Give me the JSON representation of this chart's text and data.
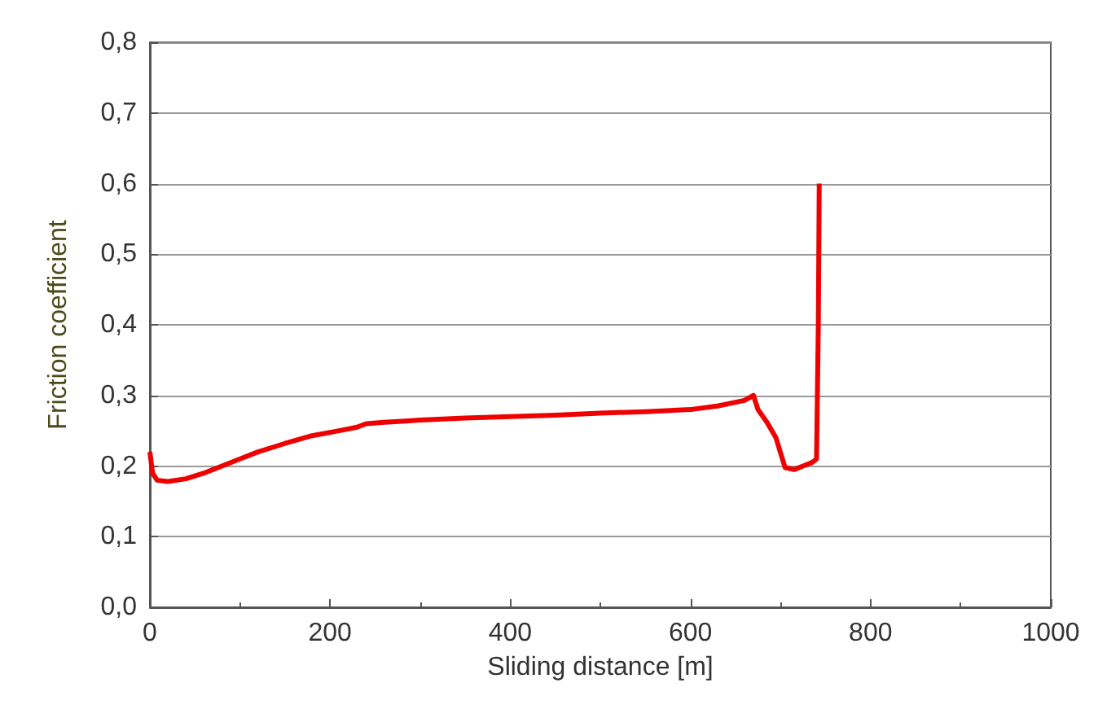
{
  "chart_data": {
    "type": "line",
    "xlabel": "Sliding distance [m]",
    "ylabel": "Friction coefficient",
    "xlim": [
      0,
      1000
    ],
    "xticks": [
      0,
      200,
      400,
      600,
      800,
      1000
    ],
    "ylim": [
      0,
      0.8
    ],
    "yticks": [
      {
        "value": 0,
        "label": "0,0"
      },
      {
        "value": 0.1,
        "label": "0,1"
      },
      {
        "value": 0.2,
        "label": "0,2"
      },
      {
        "value": 0.3,
        "label": "0,3"
      },
      {
        "value": 0.4,
        "label": "0,4"
      },
      {
        "value": 0.5,
        "label": "0,5"
      },
      {
        "value": 0.6,
        "label": "0,6"
      },
      {
        "value": 0.7,
        "label": "0,7"
      },
      {
        "value": 0.8,
        "label": "0,8"
      }
    ],
    "grid": "y",
    "marker": "none",
    "line_style": "solid",
    "series": [
      {
        "color": "#ee0000",
        "x": [
          0,
          3,
          8,
          20,
          40,
          60,
          80,
          100,
          120,
          150,
          180,
          210,
          230,
          240,
          260,
          300,
          350,
          400,
          450,
          500,
          550,
          600,
          630,
          660,
          670,
          675,
          685,
          695,
          705,
          715,
          725,
          735,
          740,
          742,
          743
        ],
        "values": [
          0.22,
          0.19,
          0.18,
          0.178,
          0.182,
          0.19,
          0.2,
          0.21,
          0.22,
          0.232,
          0.243,
          0.25,
          0.255,
          0.26,
          0.262,
          0.265,
          0.268,
          0.27,
          0.272,
          0.275,
          0.277,
          0.28,
          0.285,
          0.293,
          0.3,
          0.28,
          0.262,
          0.24,
          0.198,
          0.195,
          0.2,
          0.205,
          0.21,
          0.4,
          0.6
        ]
      }
    ]
  }
}
